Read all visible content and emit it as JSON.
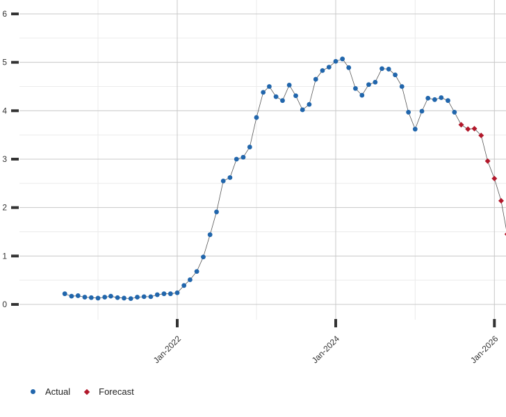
{
  "chart_data": {
    "type": "line",
    "title": "",
    "xlabel": "",
    "ylabel": "",
    "ylim": [
      0,
      6
    ],
    "xlim": [
      "2020-06-01",
      "2026-01-01"
    ],
    "y_ticks": [
      "0",
      "1",
      "2",
      "3",
      "4",
      "5",
      "6"
    ],
    "x_ticks": [
      {
        "date": "2022-01-01",
        "label": "Jan-2022"
      },
      {
        "date": "2024-01-01",
        "label": "Jan-2024"
      },
      {
        "date": "2026-01-01",
        "label": "Jan-2026"
      }
    ],
    "grid": true,
    "legend_position": "bottom-left",
    "series": [
      {
        "name": "Actual",
        "marker": "circle",
        "color": "#2166ac",
        "points": [
          [
            "2020-08",
            0.22
          ],
          [
            "2020-09",
            0.17
          ],
          [
            "2020-10",
            0.18
          ],
          [
            "2020-11",
            0.15
          ],
          [
            "2020-12",
            0.14
          ],
          [
            "2021-01",
            0.13
          ],
          [
            "2021-02",
            0.15
          ],
          [
            "2021-03",
            0.17
          ],
          [
            "2021-04",
            0.14
          ],
          [
            "2021-05",
            0.13
          ],
          [
            "2021-06",
            0.12
          ],
          [
            "2021-07",
            0.15
          ],
          [
            "2021-08",
            0.16
          ],
          [
            "2021-09",
            0.16
          ],
          [
            "2021-10",
            0.2
          ],
          [
            "2021-11",
            0.22
          ],
          [
            "2021-12",
            0.22
          ],
          [
            "2022-01",
            0.24
          ],
          [
            "2022-02",
            0.39
          ],
          [
            "2022-03",
            0.51
          ],
          [
            "2022-04",
            0.68
          ],
          [
            "2022-05",
            0.98
          ],
          [
            "2022-06",
            1.44
          ],
          [
            "2022-07",
            1.91
          ],
          [
            "2022-08",
            2.55
          ],
          [
            "2022-09",
            2.62
          ],
          [
            "2022-10",
            3.0
          ],
          [
            "2022-11",
            3.04
          ],
          [
            "2022-12",
            3.25
          ],
          [
            "2023-01",
            3.86
          ],
          [
            "2023-02",
            4.38
          ],
          [
            "2023-03",
            4.5
          ],
          [
            "2023-04",
            4.29
          ],
          [
            "2023-05",
            4.21
          ],
          [
            "2023-06",
            4.53
          ],
          [
            "2023-07",
            4.31
          ],
          [
            "2023-08",
            4.02
          ],
          [
            "2023-09",
            4.13
          ],
          [
            "2023-10",
            4.65
          ],
          [
            "2023-11",
            4.83
          ],
          [
            "2023-12",
            4.9
          ],
          [
            "2024-01",
            5.02
          ],
          [
            "2024-02",
            5.07
          ],
          [
            "2024-03",
            4.89
          ],
          [
            "2024-04",
            4.46
          ],
          [
            "2024-05",
            4.32
          ],
          [
            "2024-06",
            4.54
          ],
          [
            "2024-07",
            4.59
          ],
          [
            "2024-08",
            4.87
          ],
          [
            "2024-09",
            4.86
          ],
          [
            "2024-10",
            4.74
          ],
          [
            "2024-11",
            4.5
          ],
          [
            "2024-12",
            3.97
          ],
          [
            "2025-01",
            3.62
          ],
          [
            "2025-02",
            3.99
          ],
          [
            "2025-03",
            4.26
          ],
          [
            "2025-04",
            4.23
          ],
          [
            "2025-05",
            4.27
          ],
          [
            "2025-06",
            4.21
          ],
          [
            "2025-07",
            3.97
          ]
        ]
      },
      {
        "name": "Forecast",
        "marker": "diamond",
        "color": "#b2182b",
        "points": [
          [
            "2025-08",
            3.71
          ],
          [
            "2025-09",
            3.62
          ],
          [
            "2025-10",
            3.63
          ],
          [
            "2025-11",
            3.49
          ],
          [
            "2025-12",
            2.96
          ],
          [
            "2026-01",
            2.6
          ],
          [
            "2026-02",
            2.14
          ],
          [
            "2026-03",
            1.45
          ]
        ]
      }
    ]
  }
}
